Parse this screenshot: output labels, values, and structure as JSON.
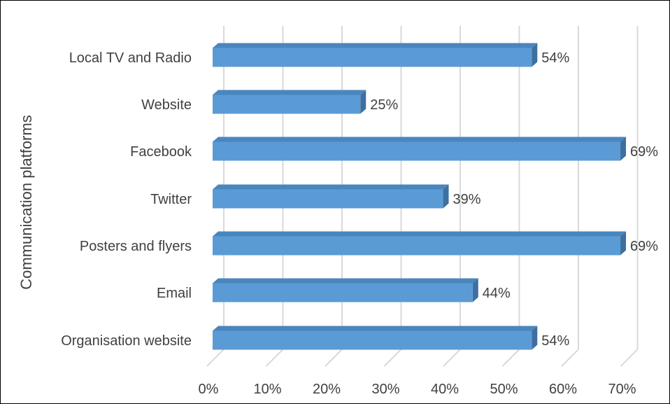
{
  "chart_data": {
    "type": "bar",
    "orientation": "horizontal",
    "style": "3d",
    "title": "",
    "ylabel": "Communication platforms",
    "xlabel": "",
    "categories": [
      "Local TV and Radio",
      "Website",
      "Facebook",
      "Twitter",
      "Posters and flyers",
      "Email",
      "Organisation website"
    ],
    "values": [
      54,
      25,
      69,
      39,
      69,
      44,
      54
    ],
    "data_labels": [
      "54%",
      "25%",
      "69%",
      "39%",
      "69%",
      "44%",
      "54%"
    ],
    "xlim": [
      0,
      70
    ],
    "xticks": [
      0,
      10,
      20,
      30,
      40,
      50,
      60,
      70
    ],
    "xtick_labels": [
      "0%",
      "10%",
      "20%",
      "30%",
      "40%",
      "50%",
      "60%",
      "70%"
    ],
    "grid": true,
    "legend": "none",
    "colors": {
      "bar_front": "#5b9bd5",
      "bar_top": "#4a86be",
      "bar_side": "#3d6f9f",
      "grid": "#d9d9d9",
      "text": "#404040"
    }
  }
}
